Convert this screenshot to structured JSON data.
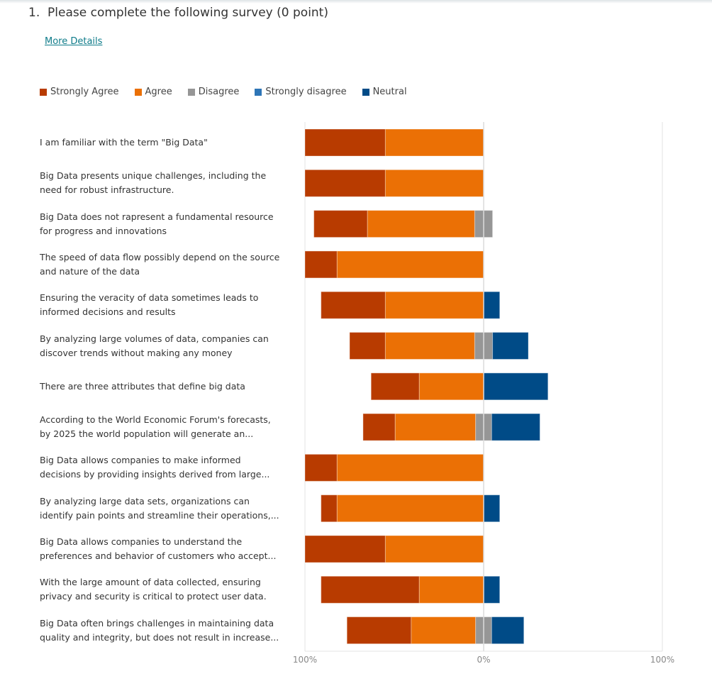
{
  "question": {
    "title": "1.  Please complete the following survey (0 point)",
    "more_details_label": "More Details"
  },
  "chart_data": {
    "type": "bar",
    "subtype": "diverging-stacked-horizontal",
    "unit": "percent",
    "xlim": [
      -100,
      100
    ],
    "tick_labels": [
      "100%",
      "0%",
      "100%"
    ],
    "legend": [
      "Strongly Agree",
      "Agree",
      "Disagree",
      "Strongly disagree",
      "Neutral"
    ],
    "legend_placement": "top-left",
    "colors": {
      "Strongly Agree": "#b83b00",
      "Agree": "#eb7005",
      "Disagree": "#969696",
      "Strongly disagree": "#2e75b6",
      "Neutral": "#004b87"
    },
    "categories": [
      "I am familiar with the term \"Big Data\"",
      "Big Data presents unique challenges, including the need for robust infrastructure.",
      "Big Data does not  rapresent a fundamental resource for progress and innovations",
      "The speed of data flow possibly depend on the source and nature of the data",
      "Ensuring the veracity of data sometimes leads to informed decisions and results",
      "By analyzing large volumes of data, companies can discover trends without making any money",
      "There are three attributes that define big data",
      "According to the World Economic Forum's forecasts, by 2025 the world population will generate an...",
      "Big Data allows companies to make informed decisions by providing insights derived from large...",
      "By analyzing large data sets, organizations can identify pain points and streamline their operations,...",
      "Big Data allows companies to understand the preferences and behavior of customers who accept...",
      "With the large amount of data collected, ensuring privacy and security is critical to protect user data.",
      "Big Data often brings challenges in maintaining data quality and integrity, but does not result in increase..."
    ],
    "series": [
      {
        "name": "Strongly Agree",
        "values": [
          45,
          45,
          30,
          18,
          36,
          20,
          27,
          18,
          18,
          9,
          45,
          55,
          36
        ]
      },
      {
        "name": "Agree",
        "values": [
          55,
          55,
          60,
          82,
          55,
          50,
          36,
          45,
          82,
          82,
          55,
          36,
          36
        ]
      },
      {
        "name": "Disagree",
        "values": [
          0,
          0,
          10,
          0,
          0,
          10,
          0,
          9,
          0,
          0,
          0,
          0,
          9
        ]
      },
      {
        "name": "Strongly disagree",
        "values": [
          0,
          0,
          0,
          0,
          0,
          0,
          0,
          0,
          0,
          0,
          0,
          0,
          0
        ]
      },
      {
        "name": "Neutral",
        "values": [
          0,
          0,
          0,
          0,
          9,
          20,
          36,
          27,
          0,
          9,
          0,
          9,
          18
        ]
      }
    ]
  }
}
